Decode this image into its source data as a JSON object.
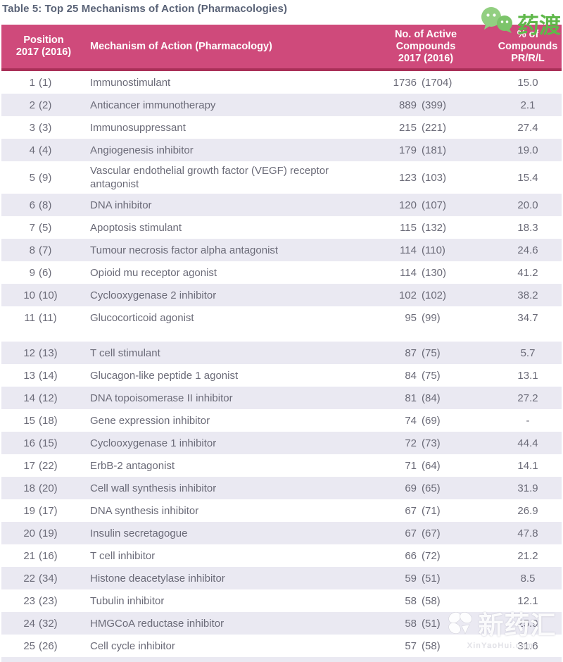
{
  "page": {
    "title": "Table 5: Top 25 Mechanisms of Action (Pharmacologies)"
  },
  "branding": {
    "logo_text": "药渡",
    "logo_icon": "wechat-chat-bubbles-icon",
    "logo_green": "#5FB84A",
    "watermark_icon": "pinwheel-clover-icon",
    "watermark_text": "新药汇",
    "watermark_subtext": "XinYaoHui.com"
  },
  "colors": {
    "header_bg": "#CF4A7B",
    "header_underline": "#A93058",
    "title_text": "#5A6377",
    "body_text": "#6B6B78",
    "alt_row_bg": "#EAE9F2",
    "header_text": "#FFFFFF"
  },
  "table": {
    "headers": {
      "position_label": "Position\n2017 (2016)",
      "mechanism_label": "Mechanism of Action (Pharmacology)",
      "compounds_label": "No. of Active\nCompounds\n2017 (2016)",
      "percent_label": "% of\nCompounds\nPR/R/L"
    },
    "rows": [
      {
        "position_2017": "1",
        "position_2016": "(1)",
        "mechanism": "Immunostimulant",
        "compounds_2017": "1736",
        "compounds_2016": "(1704)",
        "pct_pr_r_l": "15.0"
      },
      {
        "position_2017": "2",
        "position_2016": "(2)",
        "mechanism": "Anticancer immunotherapy",
        "compounds_2017": "889",
        "compounds_2016": "(399)",
        "pct_pr_r_l": "2.1"
      },
      {
        "position_2017": "3",
        "position_2016": "(3)",
        "mechanism": "Immunosuppressant",
        "compounds_2017": "215",
        "compounds_2016": "(221)",
        "pct_pr_r_l": "27.4"
      },
      {
        "position_2017": "4",
        "position_2016": "(4)",
        "mechanism": "Angiogenesis inhibitor",
        "compounds_2017": "179",
        "compounds_2016": "(181)",
        "pct_pr_r_l": "19.0"
      },
      {
        "position_2017": "5",
        "position_2016": "(9)",
        "mechanism": "Vascular endothelial growth factor (VEGF) receptor antagonist",
        "compounds_2017": "123",
        "compounds_2016": "(103)",
        "pct_pr_r_l": "15.4"
      },
      {
        "position_2017": "6",
        "position_2016": "(8)",
        "mechanism": "DNA inhibitor",
        "compounds_2017": "120",
        "compounds_2016": "(107)",
        "pct_pr_r_l": "20.0"
      },
      {
        "position_2017": "7",
        "position_2016": "(5)",
        "mechanism": "Apoptosis stimulant",
        "compounds_2017": "115",
        "compounds_2016": "(132)",
        "pct_pr_r_l": "18.3"
      },
      {
        "position_2017": "8",
        "position_2016": "(7)",
        "mechanism": "Tumour necrosis factor alpha antagonist",
        "compounds_2017": "114",
        "compounds_2016": "(110)",
        "pct_pr_r_l": "24.6"
      },
      {
        "position_2017": "9",
        "position_2016": "(6)",
        "mechanism": "Opioid mu receptor agonist",
        "compounds_2017": "114",
        "compounds_2016": "(130)",
        "pct_pr_r_l": "41.2"
      },
      {
        "position_2017": "10",
        "position_2016": "(10)",
        "mechanism": "Cyclooxygenase 2 inhibitor",
        "compounds_2017": "102",
        "compounds_2016": "(102)",
        "pct_pr_r_l": "38.2"
      },
      {
        "position_2017": "11",
        "position_2016": "(11)",
        "mechanism": "Glucocorticoid agonist",
        "compounds_2017": "95",
        "compounds_2016": "(99)",
        "pct_pr_r_l": "34.7"
      },
      {
        "position_2017": "12",
        "position_2016": "(13)",
        "mechanism": "T cell stimulant",
        "compounds_2017": "87",
        "compounds_2016": "(75)",
        "pct_pr_r_l": "5.7",
        "gap_before": true
      },
      {
        "position_2017": "13",
        "position_2016": "(14)",
        "mechanism": "Glucagon-like peptide 1 agonist",
        "compounds_2017": "84",
        "compounds_2016": "(75)",
        "pct_pr_r_l": "13.1"
      },
      {
        "position_2017": "14",
        "position_2016": "(12)",
        "mechanism": "DNA topoisomerase II inhibitor",
        "compounds_2017": "81",
        "compounds_2016": "(84)",
        "pct_pr_r_l": "27.2"
      },
      {
        "position_2017": "15",
        "position_2016": "(18)",
        "mechanism": "Gene expression inhibitor",
        "compounds_2017": "74",
        "compounds_2016": "(69)",
        "pct_pr_r_l": "-"
      },
      {
        "position_2017": "16",
        "position_2016": "(15)",
        "mechanism": "Cyclooxygenase 1 inhibitor",
        "compounds_2017": "72",
        "compounds_2016": "(73)",
        "pct_pr_r_l": "44.4"
      },
      {
        "position_2017": "17",
        "position_2016": "(22)",
        "mechanism": "ErbB-2 antagonist",
        "compounds_2017": "71",
        "compounds_2016": "(64)",
        "pct_pr_r_l": "14.1"
      },
      {
        "position_2017": "18",
        "position_2016": "(20)",
        "mechanism": "Cell wall synthesis inhibitor",
        "compounds_2017": "69",
        "compounds_2016": "(65)",
        "pct_pr_r_l": "31.9"
      },
      {
        "position_2017": "19",
        "position_2016": "(17)",
        "mechanism": "DNA synthesis inhibitor",
        "compounds_2017": "67",
        "compounds_2016": "(71)",
        "pct_pr_r_l": "26.9"
      },
      {
        "position_2017": "20",
        "position_2016": "(19)",
        "mechanism": "Insulin secretagogue",
        "compounds_2017": "67",
        "compounds_2016": "(67)",
        "pct_pr_r_l": "47.8"
      },
      {
        "position_2017": "21",
        "position_2016": "(16)",
        "mechanism": "T cell inhibitor",
        "compounds_2017": "66",
        "compounds_2016": "(72)",
        "pct_pr_r_l": "21.2"
      },
      {
        "position_2017": "22",
        "position_2016": "(34)",
        "mechanism": "Histone deacetylase inhibitor",
        "compounds_2017": "59",
        "compounds_2016": "(51)",
        "pct_pr_r_l": "8.5"
      },
      {
        "position_2017": "23",
        "position_2016": "(23)",
        "mechanism": "Tubulin inhibitor",
        "compounds_2017": "58",
        "compounds_2016": "(58)",
        "pct_pr_r_l": "12.1"
      },
      {
        "position_2017": "24",
        "position_2016": "(32)",
        "mechanism": "HMGCoA reductase inhibitor",
        "compounds_2017": "58",
        "compounds_2016": "(51)",
        "pct_pr_r_l": "25.9"
      },
      {
        "position_2017": "25",
        "position_2016": "(26)",
        "mechanism": "Cell cycle inhibitor",
        "compounds_2017": "57",
        "compounds_2016": "(58)",
        "pct_pr_r_l": "31.6"
      }
    ]
  }
}
